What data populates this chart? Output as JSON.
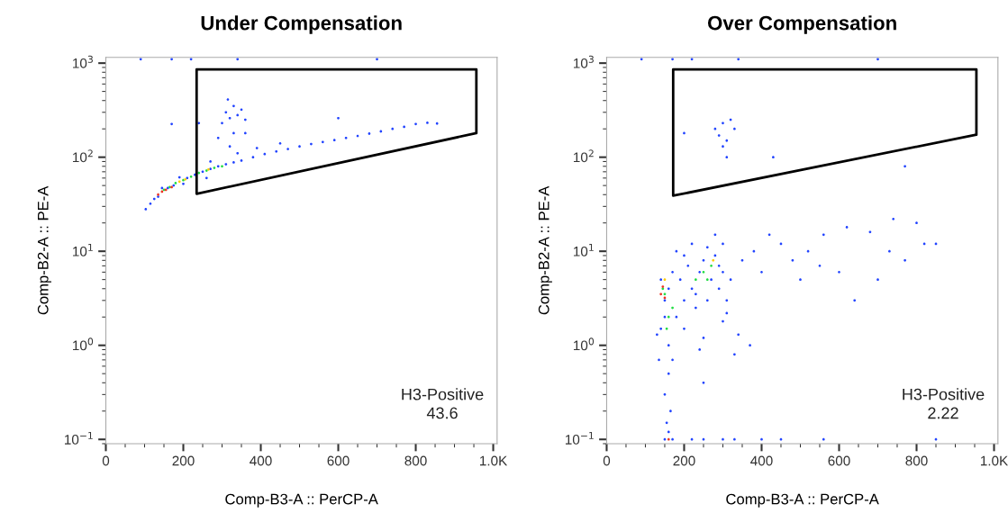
{
  "chart_data": [
    {
      "type": "scatter",
      "title": "Under Compensation",
      "xlabel": "Comp-B3-A :: PerCP-A",
      "ylabel": "Comp-B2-A :: PE-A",
      "xlim": [
        0,
        1010
      ],
      "ylim": [
        0.09,
        1150
      ],
      "log": "y",
      "xticks": [
        0,
        200,
        400,
        600,
        800,
        {
          "value": 1000,
          "label": "1.0K"
        }
      ],
      "yticks": [
        {
          "value": 0.1,
          "label": "10$^{−1}$"
        },
        {
          "value": 1,
          "label": "10$^{0}$"
        },
        {
          "value": 10,
          "label": "10$^{1}$"
        },
        {
          "value": 100,
          "label": "10$^{2}$"
        },
        {
          "value": 1000,
          "label": "10$^{3}$"
        }
      ],
      "annotations": [
        "H3-Positive\n43.6"
      ],
      "series": [
        {
          "color": "#2244ff",
          "x": [
            103,
            115,
            125,
            135,
            145,
            160,
            175,
            190,
            210,
            230,
            250,
            270,
            290,
            310,
            330,
            350,
            380,
            410,
            440,
            470,
            500,
            530,
            560,
            590,
            620,
            650,
            680,
            710,
            740,
            770,
            800,
            830,
            855,
            300,
            310,
            320,
            330,
            340,
            350,
            360,
            315,
            290,
            330,
            240,
            170,
            360,
            390,
            450,
            600,
            270,
            200,
            90,
            170,
            220,
            340,
            700,
            260,
            320,
            340
          ],
          "values": [
            28,
            32,
            36,
            38,
            47,
            47,
            50,
            61,
            60,
            65,
            70,
            75,
            80,
            84,
            88,
            92,
            100,
            108,
            115,
            122,
            130,
            138,
            145,
            152,
            160,
            168,
            178,
            188,
            200,
            210,
            225,
            232,
            228,
            230,
            300,
            260,
            350,
            280,
            320,
            250,
            410,
            160,
            180,
            230,
            225,
            180,
            125,
            140,
            260,
            90,
            52,
            1100,
            1100,
            1100,
            1100,
            1100,
            60,
            130,
            110
          ]
        },
        {
          "color": "#22dd44",
          "x": [
            150,
            165,
            180,
            200,
            220,
            240,
            260,
            280,
            300
          ],
          "values": [
            45,
            48,
            53,
            57,
            62,
            68,
            72,
            77,
            80
          ]
        },
        {
          "color": "#ffcc00",
          "x": [
            190,
            205,
            265
          ],
          "values": [
            55,
            58,
            74
          ]
        },
        {
          "color": "#ee3322",
          "x": [
            135,
            145,
            155,
            170
          ],
          "values": [
            40,
            43,
            45,
            48
          ]
        }
      ]
    },
    {
      "type": "scatter",
      "title": "Over Compensation",
      "xlabel": "Comp-B3-A :: PerCP-A",
      "ylabel": "Comp-B2-A :: PE-A",
      "xlim": [
        0,
        1010
      ],
      "ylim": [
        0.09,
        1150
      ],
      "log": "y",
      "xticks": [
        0,
        200,
        400,
        600,
        800,
        {
          "value": 1000,
          "label": "1.0K"
        }
      ],
      "yticks": [
        {
          "value": 0.1,
          "label": "10$^{−1}$"
        },
        {
          "value": 1,
          "label": "10$^{0}$"
        },
        {
          "value": 10,
          "label": "10$^{1}$"
        },
        {
          "value": 100,
          "label": "10$^{2}$"
        },
        {
          "value": 1000,
          "label": "10$^{3}$"
        }
      ],
      "annotations": [
        "H3-Positive\n2.22"
      ],
      "series": [
        {
          "color": "#2244ff",
          "x": [
            140,
            150,
            160,
            170,
            180,
            190,
            200,
            210,
            220,
            230,
            240,
            250,
            260,
            270,
            280,
            290,
            300,
            310,
            320,
            140,
            150,
            160,
            170,
            160,
            150,
            165,
            155,
            160,
            200,
            250,
            300,
            330,
            240,
            180,
            220,
            280,
            300,
            350,
            380,
            400,
            420,
            450,
            480,
            500,
            520,
            550,
            600,
            640,
            700,
            730,
            770,
            820,
            850,
            560,
            620,
            680,
            740,
            800,
            200,
            230,
            260,
            290,
            310,
            130,
            135,
            340,
            370,
            250,
            150,
            170,
            220,
            250,
            300,
            330,
            400,
            450,
            560,
            850,
            280,
            290,
            300,
            310,
            320,
            330,
            300,
            310,
            200,
            430,
            770,
            90,
            170,
            220,
            340,
            700
          ],
          "values": [
            5,
            3,
            4,
            6,
            2,
            5,
            3,
            7,
            4,
            2.5,
            6,
            8,
            3,
            5,
            9,
            4,
            6,
            3,
            5,
            1.5,
            2,
            1,
            0.7,
            0.5,
            0.3,
            0.2,
            0.15,
            0.12,
            1.5,
            1.2,
            1.8,
            0.8,
            0.9,
            10,
            12,
            15,
            12,
            8,
            10,
            6,
            15,
            12,
            8,
            5,
            10,
            7,
            6,
            3,
            5,
            10,
            8,
            12,
            12,
            15,
            18,
            16,
            22,
            20,
            9,
            3.5,
            11,
            7,
            2.2,
            1.3,
            0.7,
            1.3,
            1.0,
            0.4,
            0.1,
            0.1,
            0.1,
            0.1,
            0.1,
            0.1,
            0.1,
            0.1,
            0.1,
            0.1,
            200,
            170,
            230,
            150,
            250,
            200,
            130,
            100,
            180,
            100,
            80,
            1100,
            1100,
            1100,
            1100,
            1100
          ]
        },
        {
          "color": "#22dd44",
          "x": [
            145,
            150,
            250,
            270,
            160,
            260,
            230,
            170,
            155
          ],
          "values": [
            4,
            3.5,
            6,
            7,
            2,
            5,
            5,
            2.5,
            1.5
          ]
        },
        {
          "color": "#ffcc00",
          "x": [
            150,
            275
          ],
          "values": [
            5,
            8
          ]
        },
        {
          "color": "#ee3322",
          "x": [
            140,
            145,
            150,
            160
          ],
          "values": [
            3.5,
            4.2,
            3.2,
            0.1
          ]
        }
      ]
    }
  ]
}
